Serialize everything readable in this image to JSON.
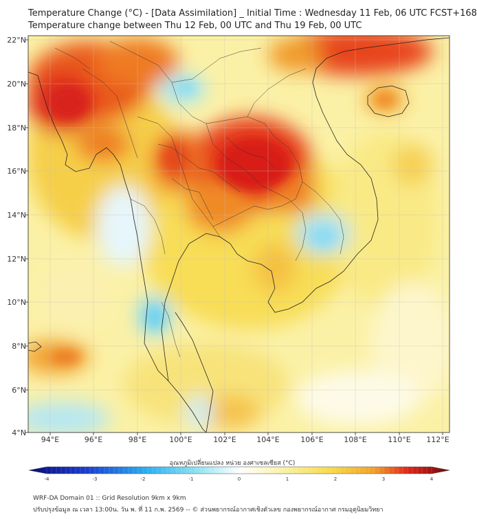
{
  "title_line1": "Temperature Change (°C) - [Data Assimilation] _ Initial Time : Wednesday 11 Feb, 06 UTC FCST+168",
  "title_line2": "Temperature change between Thu 12 Feb, 00 UTC and Thu 19 Feb, 00 UTC",
  "lat_labels": [
    "22°N",
    "20°N",
    "18°N",
    "16°N",
    "14°N",
    "12°N",
    "10°N",
    "8°N",
    "6°N",
    "4°N"
  ],
  "lon_labels": [
    "94°E",
    "96°E",
    "98°E",
    "100°E",
    "102°E",
    "104°E",
    "106°E",
    "108°E",
    "110°E",
    "112°E"
  ],
  "colorbar": {
    "title": "อุณหภูมิเปลี่ยนแปลง หน่วย องศาเซลเซียส (°C)",
    "ticks": [
      "-4",
      "-3",
      "-2",
      "-1",
      "0",
      "1",
      "2",
      "3",
      "4"
    ],
    "range": [
      -4,
      4
    ]
  },
  "footer_line1": "WRF-DA Domain 01 :: Grid Resolution 9km x 9km",
  "footer_line2": "ปรับปรุงข้อมูล ณ เวลา 13:00น. วัน พ. ที่ 11 ก.พ. 2569 -- © ส่วนพยากรณ์อากาศเชิงตัวเลข กองพยากรณ์อากาศ กรมอุตุนิยมวิทยา",
  "colors": {
    "cold_max": "#0a0a7a",
    "cyan": "#6fd9f0",
    "neutral": "#ffffff",
    "yellow": "#f7e25a",
    "orange": "#f2a12a",
    "red": "#e0261a",
    "hot_max": "#6e0a0a"
  }
}
